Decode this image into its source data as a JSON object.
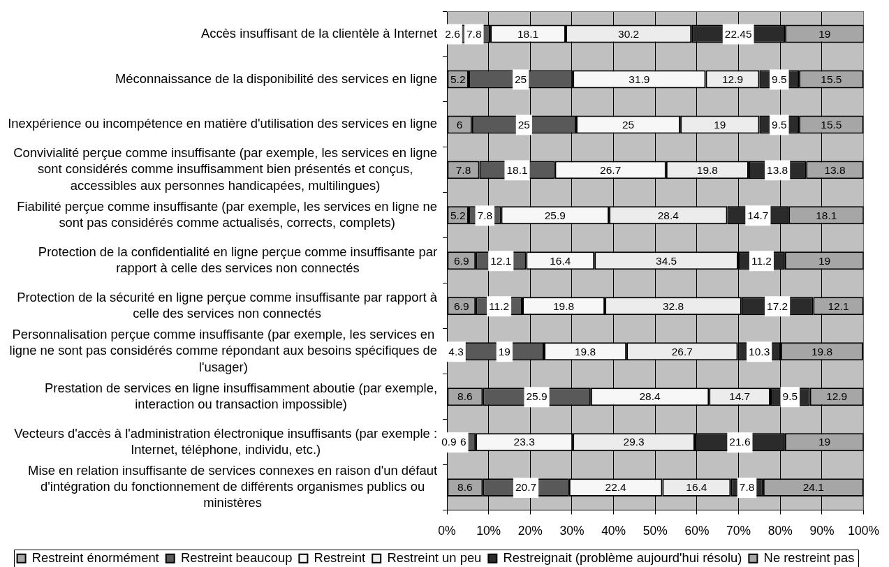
{
  "chart_data": {
    "type": "bar",
    "orientation": "horizontal",
    "stacked": true,
    "categories": [
      "Accès insuffisant de la clientèle à Internet",
      "Méconnaissance de la disponibilité des services en ligne",
      "Inexpérience ou incompétence en matière d'utilisation des services en ligne",
      "Convivialité perçue comme insuffisante (par exemple, les services en ligne sont considérés comme insuffisamment bien présentés et conçus, accessibles aux personnes handicapées, multilingues)",
      "Fiabilité perçue comme insuffisante (par exemple, les services en ligne ne sont pas considérés comme actualisés, corrects, complets)",
      "Protection de la confidentialité en ligne perçue comme insuffisante par rapport à celle des services non connectés",
      "Protection de la sécurité en ligne perçue comme insuffisante par rapport à celle des services non connectés",
      "Personnalisation perçue comme insuffisante (par exemple, les services en ligne ne sont pas considérés comme répondant aux besoins spécifiques de l'usager)",
      "Prestation de services en ligne insuffisamment aboutie (par exemple, interaction ou transaction impossible)",
      "Vecteurs d'accès à l'administration électronique insuffisants (par exemple : Internet, téléphone, individu, etc.)",
      "Mise en relation insuffisante de services connexes en raison d'un défaut d'intégration du fonctionnement de différents organismes publics ou ministères"
    ],
    "series": [
      {
        "name": "Restreint énormément",
        "color": "#a6a6a6",
        "values": [
          2.6,
          5.2,
          6,
          7.8,
          5.2,
          6.9,
          6.9,
          4.3,
          8.6,
          0.9,
          8.6
        ]
      },
      {
        "name": "Restreint beaucoup",
        "color": "#595959",
        "values": [
          7.8,
          25,
          25,
          18.1,
          7.8,
          12.1,
          11.2,
          19,
          25.9,
          6,
          20.7
        ]
      },
      {
        "name": "Restreint",
        "color": "#f7f7f7",
        "values": [
          18.1,
          31.9,
          25,
          26.7,
          25.9,
          16.4,
          19.8,
          19.8,
          28.4,
          23.3,
          22.4
        ]
      },
      {
        "name": "Restreint un peu",
        "color": "#ececec",
        "values": [
          30.2,
          12.9,
          19,
          19.8,
          28.4,
          34.5,
          32.8,
          26.7,
          14.7,
          29.3,
          16.4
        ]
      },
      {
        "name": "Restreignait (problème aujourd'hui résolu)",
        "color": "#2b2b2b",
        "values": [
          22.45,
          9.5,
          9.5,
          13.8,
          14.7,
          11.2,
          17.2,
          10.3,
          9.5,
          21.6,
          7.8
        ]
      },
      {
        "name": "Ne restreint pas",
        "color": "#a6a6a6",
        "values": [
          19,
          15.5,
          15.5,
          13.8,
          18.1,
          19,
          12.1,
          19.8,
          12.9,
          19,
          24.1
        ]
      }
    ],
    "xlim": [
      0,
      100
    ],
    "xticks": [
      {
        "value": 0,
        "label": "0%"
      },
      {
        "value": 10,
        "label": "10%"
      },
      {
        "value": 20,
        "label": "20%"
      },
      {
        "value": 30,
        "label": "30%"
      },
      {
        "value": 40,
        "label": "40%"
      },
      {
        "value": 50,
        "label": "50%"
      },
      {
        "value": 60,
        "label": "60%"
      },
      {
        "value": 70,
        "label": "70%"
      },
      {
        "value": 80,
        "label": "80%"
      },
      {
        "value": 90,
        "label": "90%"
      },
      {
        "value": 100,
        "label": "100%"
      }
    ],
    "grid": "x",
    "legend": "bottom",
    "data_labels": true
  }
}
